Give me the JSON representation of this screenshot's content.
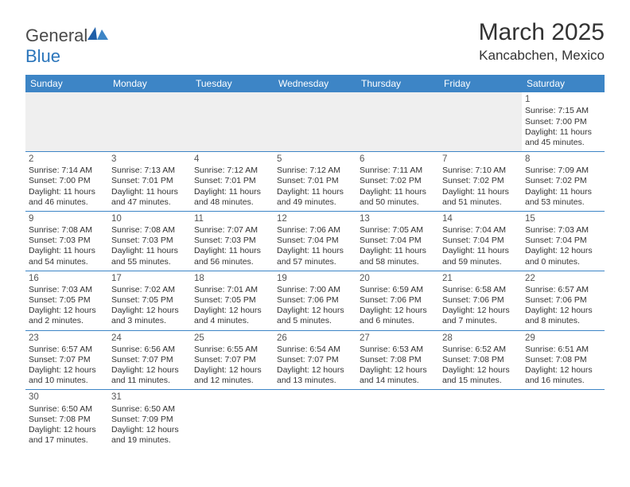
{
  "logo": {
    "text1": "General",
    "text2": "Blue"
  },
  "title": "March 2025",
  "location": "Kancabchen, Mexico",
  "header_bg": "#3d85c6",
  "days_of_week": [
    "Sunday",
    "Monday",
    "Tuesday",
    "Wednesday",
    "Thursday",
    "Friday",
    "Saturday"
  ],
  "weeks": [
    [
      null,
      null,
      null,
      null,
      null,
      null,
      {
        "n": "1",
        "sr": "Sunrise: 7:15 AM",
        "ss": "Sunset: 7:00 PM",
        "dl": "Daylight: 11 hours and 45 minutes."
      }
    ],
    [
      {
        "n": "2",
        "sr": "Sunrise: 7:14 AM",
        "ss": "Sunset: 7:00 PM",
        "dl": "Daylight: 11 hours and 46 minutes."
      },
      {
        "n": "3",
        "sr": "Sunrise: 7:13 AM",
        "ss": "Sunset: 7:01 PM",
        "dl": "Daylight: 11 hours and 47 minutes."
      },
      {
        "n": "4",
        "sr": "Sunrise: 7:12 AM",
        "ss": "Sunset: 7:01 PM",
        "dl": "Daylight: 11 hours and 48 minutes."
      },
      {
        "n": "5",
        "sr": "Sunrise: 7:12 AM",
        "ss": "Sunset: 7:01 PM",
        "dl": "Daylight: 11 hours and 49 minutes."
      },
      {
        "n": "6",
        "sr": "Sunrise: 7:11 AM",
        "ss": "Sunset: 7:02 PM",
        "dl": "Daylight: 11 hours and 50 minutes."
      },
      {
        "n": "7",
        "sr": "Sunrise: 7:10 AM",
        "ss": "Sunset: 7:02 PM",
        "dl": "Daylight: 11 hours and 51 minutes."
      },
      {
        "n": "8",
        "sr": "Sunrise: 7:09 AM",
        "ss": "Sunset: 7:02 PM",
        "dl": "Daylight: 11 hours and 53 minutes."
      }
    ],
    [
      {
        "n": "9",
        "sr": "Sunrise: 7:08 AM",
        "ss": "Sunset: 7:03 PM",
        "dl": "Daylight: 11 hours and 54 minutes."
      },
      {
        "n": "10",
        "sr": "Sunrise: 7:08 AM",
        "ss": "Sunset: 7:03 PM",
        "dl": "Daylight: 11 hours and 55 minutes."
      },
      {
        "n": "11",
        "sr": "Sunrise: 7:07 AM",
        "ss": "Sunset: 7:03 PM",
        "dl": "Daylight: 11 hours and 56 minutes."
      },
      {
        "n": "12",
        "sr": "Sunrise: 7:06 AM",
        "ss": "Sunset: 7:04 PM",
        "dl": "Daylight: 11 hours and 57 minutes."
      },
      {
        "n": "13",
        "sr": "Sunrise: 7:05 AM",
        "ss": "Sunset: 7:04 PM",
        "dl": "Daylight: 11 hours and 58 minutes."
      },
      {
        "n": "14",
        "sr": "Sunrise: 7:04 AM",
        "ss": "Sunset: 7:04 PM",
        "dl": "Daylight: 11 hours and 59 minutes."
      },
      {
        "n": "15",
        "sr": "Sunrise: 7:03 AM",
        "ss": "Sunset: 7:04 PM",
        "dl": "Daylight: 12 hours and 0 minutes."
      }
    ],
    [
      {
        "n": "16",
        "sr": "Sunrise: 7:03 AM",
        "ss": "Sunset: 7:05 PM",
        "dl": "Daylight: 12 hours and 2 minutes."
      },
      {
        "n": "17",
        "sr": "Sunrise: 7:02 AM",
        "ss": "Sunset: 7:05 PM",
        "dl": "Daylight: 12 hours and 3 minutes."
      },
      {
        "n": "18",
        "sr": "Sunrise: 7:01 AM",
        "ss": "Sunset: 7:05 PM",
        "dl": "Daylight: 12 hours and 4 minutes."
      },
      {
        "n": "19",
        "sr": "Sunrise: 7:00 AM",
        "ss": "Sunset: 7:06 PM",
        "dl": "Daylight: 12 hours and 5 minutes."
      },
      {
        "n": "20",
        "sr": "Sunrise: 6:59 AM",
        "ss": "Sunset: 7:06 PM",
        "dl": "Daylight: 12 hours and 6 minutes."
      },
      {
        "n": "21",
        "sr": "Sunrise: 6:58 AM",
        "ss": "Sunset: 7:06 PM",
        "dl": "Daylight: 12 hours and 7 minutes."
      },
      {
        "n": "22",
        "sr": "Sunrise: 6:57 AM",
        "ss": "Sunset: 7:06 PM",
        "dl": "Daylight: 12 hours and 8 minutes."
      }
    ],
    [
      {
        "n": "23",
        "sr": "Sunrise: 6:57 AM",
        "ss": "Sunset: 7:07 PM",
        "dl": "Daylight: 12 hours and 10 minutes."
      },
      {
        "n": "24",
        "sr": "Sunrise: 6:56 AM",
        "ss": "Sunset: 7:07 PM",
        "dl": "Daylight: 12 hours and 11 minutes."
      },
      {
        "n": "25",
        "sr": "Sunrise: 6:55 AM",
        "ss": "Sunset: 7:07 PM",
        "dl": "Daylight: 12 hours and 12 minutes."
      },
      {
        "n": "26",
        "sr": "Sunrise: 6:54 AM",
        "ss": "Sunset: 7:07 PM",
        "dl": "Daylight: 12 hours and 13 minutes."
      },
      {
        "n": "27",
        "sr": "Sunrise: 6:53 AM",
        "ss": "Sunset: 7:08 PM",
        "dl": "Daylight: 12 hours and 14 minutes."
      },
      {
        "n": "28",
        "sr": "Sunrise: 6:52 AM",
        "ss": "Sunset: 7:08 PM",
        "dl": "Daylight: 12 hours and 15 minutes."
      },
      {
        "n": "29",
        "sr": "Sunrise: 6:51 AM",
        "ss": "Sunset: 7:08 PM",
        "dl": "Daylight: 12 hours and 16 minutes."
      }
    ],
    [
      {
        "n": "30",
        "sr": "Sunrise: 6:50 AM",
        "ss": "Sunset: 7:08 PM",
        "dl": "Daylight: 12 hours and 17 minutes."
      },
      {
        "n": "31",
        "sr": "Sunrise: 6:50 AM",
        "ss": "Sunset: 7:09 PM",
        "dl": "Daylight: 12 hours and 19 minutes."
      },
      null,
      null,
      null,
      null,
      null
    ]
  ]
}
